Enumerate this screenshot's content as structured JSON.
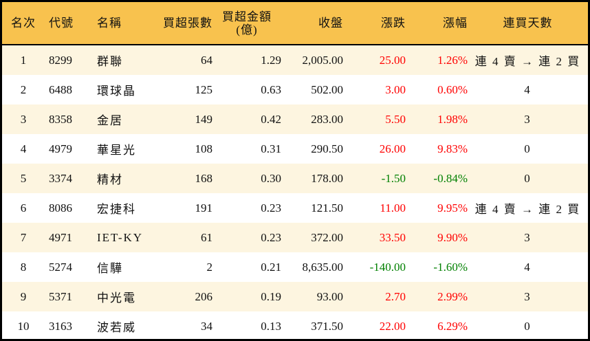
{
  "headers": [
    "名次",
    "代號",
    "名稱",
    "買超張數",
    "買超金額",
    "(億)",
    "收盤",
    "漲跌",
    "漲幅",
    "連買天數"
  ],
  "colors": {
    "header_bg": "#f8c24e",
    "odd_row_bg": "#fdf5e0",
    "up": "#ff0000",
    "down": "#008000"
  },
  "rows": [
    {
      "rank": "1",
      "code": "8299",
      "name": "群聯",
      "shares": "64",
      "amount": "1.29",
      "close": "2,005.00",
      "change": "25.00",
      "pct": "1.26%",
      "days": "連 4 賣 → 連 2 買",
      "dir": "up"
    },
    {
      "rank": "2",
      "code": "6488",
      "name": "環球晶",
      "shares": "125",
      "amount": "0.63",
      "close": "502.00",
      "change": "3.00",
      "pct": "0.60%",
      "days": "4",
      "dir": "up"
    },
    {
      "rank": "3",
      "code": "8358",
      "name": "金居",
      "shares": "149",
      "amount": "0.42",
      "close": "283.00",
      "change": "5.50",
      "pct": "1.98%",
      "days": "3",
      "dir": "up"
    },
    {
      "rank": "4",
      "code": "4979",
      "name": "華星光",
      "shares": "108",
      "amount": "0.31",
      "close": "290.50",
      "change": "26.00",
      "pct": "9.83%",
      "days": "0",
      "dir": "up"
    },
    {
      "rank": "5",
      "code": "3374",
      "name": "精材",
      "shares": "168",
      "amount": "0.30",
      "close": "178.00",
      "change": "-1.50",
      "pct": "-0.84%",
      "days": "0",
      "dir": "down"
    },
    {
      "rank": "6",
      "code": "8086",
      "name": "宏捷科",
      "shares": "191",
      "amount": "0.23",
      "close": "121.50",
      "change": "11.00",
      "pct": "9.95%",
      "days": "連 4 賣 → 連 2 買",
      "dir": "up"
    },
    {
      "rank": "7",
      "code": "4971",
      "name": "IET-KY",
      "shares": "61",
      "amount": "0.23",
      "close": "372.00",
      "change": "33.50",
      "pct": "9.90%",
      "days": "3",
      "dir": "up"
    },
    {
      "rank": "8",
      "code": "5274",
      "name": "信驊",
      "shares": "2",
      "amount": "0.21",
      "close": "8,635.00",
      "change": "-140.00",
      "pct": "-1.60%",
      "days": "4",
      "dir": "down"
    },
    {
      "rank": "9",
      "code": "5371",
      "name": "中光電",
      "shares": "206",
      "amount": "0.19",
      "close": "93.00",
      "change": "2.70",
      "pct": "2.99%",
      "days": "3",
      "dir": "up"
    },
    {
      "rank": "10",
      "code": "3163",
      "name": "波若威",
      "shares": "34",
      "amount": "0.13",
      "close": "371.50",
      "change": "22.00",
      "pct": "6.29%",
      "days": "0",
      "dir": "up"
    }
  ]
}
